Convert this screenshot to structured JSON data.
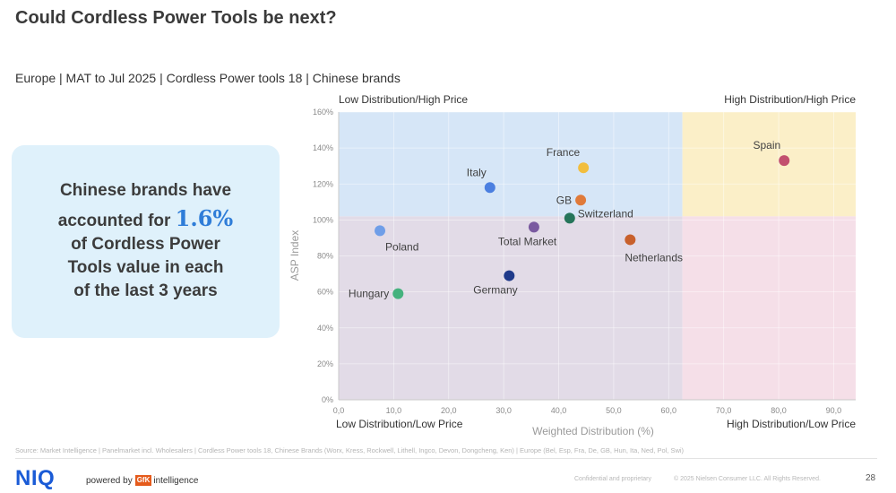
{
  "title": "Could Cordless Power Tools be next?",
  "subtitle": "Europe | MAT to Jul 2025 | Cordless Power tools 18 | Chinese brands",
  "callout": {
    "line1": "Chinese brands have",
    "line2_prefix": "accounted for ",
    "highlight": "1.6%",
    "line3": "of Cordless Power",
    "line4": "Tools value in each",
    "line5": "of the last 3 years"
  },
  "quadrant_labels": {
    "top_left": "Low Distribution/High Price",
    "top_right": "High Distribution/High Price",
    "bottom_left": "Low Distribution/Low Price",
    "bottom_right": "High Distribution/Low Price"
  },
  "colors": {
    "q_top_left": "#d6e6f7",
    "q_top_right": "#fbefc8",
    "q_bottom_left": "#e2dbe7",
    "q_bottom_right": "#f5dfe8",
    "callout_bg": "#dff1fb",
    "highlight": "#2f7dd8",
    "niq_blue": "#1a5bd6",
    "gfk_orange": "#e55b1c"
  },
  "chart_data": {
    "type": "scatter",
    "xlabel": "Weighted Distribution (%)",
    "ylabel": "ASP Index",
    "xlim": [
      0,
      94
    ],
    "ylim": [
      0,
      160
    ],
    "x_ticks": [
      "0,0",
      "10,0",
      "20,0",
      "30,0",
      "40,0",
      "50,0",
      "60,0",
      "70,0",
      "80,0",
      "90,0"
    ],
    "x_tick_values": [
      0,
      10,
      20,
      30,
      40,
      50,
      60,
      70,
      80,
      90
    ],
    "y_ticks": [
      "0%",
      "20%",
      "40%",
      "60%",
      "80%",
      "100%",
      "120%",
      "140%",
      "160%"
    ],
    "y_tick_values": [
      0,
      20,
      40,
      60,
      80,
      100,
      120,
      140,
      160
    ],
    "x_divider": 62.5,
    "y_divider": 102,
    "grid": true,
    "points": [
      {
        "label": "Spain",
        "x": 81.0,
        "y": 133,
        "color": "#c2506e",
        "label_pos": "above-left"
      },
      {
        "label": "France",
        "x": 44.5,
        "y": 129,
        "color": "#f2be3e",
        "label_pos": "above-left"
      },
      {
        "label": "Italy",
        "x": 27.5,
        "y": 118,
        "color": "#4b7fe0",
        "label_pos": "above-left"
      },
      {
        "label": "GB",
        "x": 44.0,
        "y": 111,
        "color": "#e07a3a",
        "label_pos": "left"
      },
      {
        "label": "Switzerland",
        "x": 42.0,
        "y": 101,
        "color": "#25755a",
        "label_pos": "right"
      },
      {
        "label": "Total Market",
        "x": 35.5,
        "y": 96,
        "color": "#7a5aa0",
        "label_pos": "below-left"
      },
      {
        "label": "Poland",
        "x": 7.5,
        "y": 94,
        "color": "#6f9ee8",
        "label_pos": "below-right"
      },
      {
        "label": "Netherlands",
        "x": 53.0,
        "y": 89,
        "color": "#c8602c",
        "label_pos": "below-right"
      },
      {
        "label": "Germany",
        "x": 31.0,
        "y": 69,
        "color": "#1f3a8a",
        "label_pos": "below-left"
      },
      {
        "label": "Hungary",
        "x": 10.8,
        "y": 59,
        "color": "#45b27e",
        "label_pos": "left"
      }
    ]
  },
  "source": "Source: Market Intelligence | Panelmarket incl. Wholesalers | Cordless Power tools 18, Chinese Brands (Worx, Kress, Rockwell, Lithell, Ingco, Devon, Dongcheng, Ken) | Europe (Bel, Esp, Fra, De, GB, Hun, Ita, Ned, Pol, Swi)",
  "footer": {
    "logo": "NIQ",
    "powered_by": "powered by",
    "gfk": "GfK",
    "intelligence": "intelligence",
    "confidential": "Confidential and proprietary",
    "copyright": "© 2025 Nielsen Consumer LLC. All Rights Reserved.",
    "page": "28"
  }
}
